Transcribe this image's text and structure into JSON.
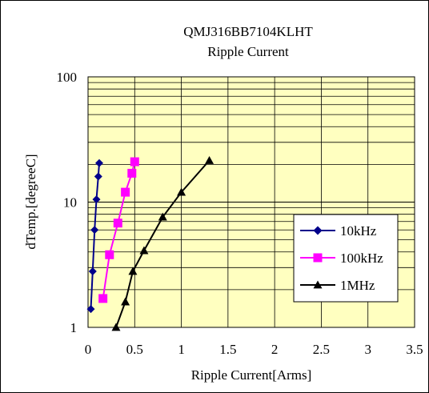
{
  "chart_data": {
    "type": "line",
    "title": "QMJ316BB7104KLHT",
    "subtitle": "Ripple Current",
    "xlabel": "Ripple Current[Arms]",
    "ylabel": "dTemp.[degreeC]",
    "xlim": [
      0,
      3.5
    ],
    "ylim": [
      1,
      100
    ],
    "yscale": "log",
    "x_ticks": [
      {
        "value": 0,
        "label": "0"
      },
      {
        "value": 0.5,
        "label": "0.5"
      },
      {
        "value": 1,
        "label": "1"
      },
      {
        "value": 1.5,
        "label": "1.5"
      },
      {
        "value": 2,
        "label": "2"
      },
      {
        "value": 2.5,
        "label": "2.5"
      },
      {
        "value": 3,
        "label": "3"
      },
      {
        "value": 3.5,
        "label": "3.5"
      }
    ],
    "y_ticks": [
      {
        "value": 1,
        "label": "1"
      },
      {
        "value": 10,
        "label": "10"
      },
      {
        "value": 100,
        "label": "100"
      }
    ],
    "grid": true,
    "legend_position": "bottom-right",
    "plot_background": "#ffffc0",
    "series": [
      {
        "name": "10kHz",
        "color": "#00008b",
        "marker": "diamond",
        "points": [
          [
            0.03,
            1.4
          ],
          [
            0.05,
            2.8
          ],
          [
            0.07,
            6.0
          ],
          [
            0.09,
            10.5
          ],
          [
            0.11,
            16.0
          ],
          [
            0.12,
            20.5
          ]
        ]
      },
      {
        "name": "100kHz",
        "color": "#ff00ff",
        "marker": "square",
        "points": [
          [
            0.16,
            1.7
          ],
          [
            0.23,
            3.8
          ],
          [
            0.32,
            6.8
          ],
          [
            0.4,
            12.0
          ],
          [
            0.47,
            17.0
          ],
          [
            0.5,
            21.0
          ]
        ]
      },
      {
        "name": "1MHz",
        "color": "#000000",
        "marker": "triangle",
        "points": [
          [
            0.3,
            1.0
          ],
          [
            0.4,
            1.6
          ],
          [
            0.48,
            2.8
          ],
          [
            0.6,
            4.1
          ],
          [
            0.8,
            7.6
          ],
          [
            1.0,
            12.0
          ],
          [
            1.3,
            21.5
          ]
        ]
      }
    ]
  }
}
